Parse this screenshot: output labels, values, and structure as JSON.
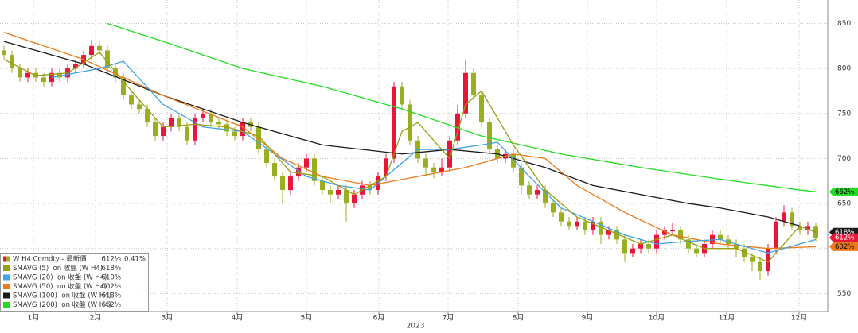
{
  "chart_data": {
    "type": "candlestick",
    "x_label": "2023",
    "xlim": [
      -0.5,
      103.5
    ],
    "xticks": [
      {
        "value": 3.7,
        "label": "1月"
      },
      {
        "value": 11.5,
        "label": "2月"
      },
      {
        "value": 20.5,
        "label": "3月"
      },
      {
        "value": 29.3,
        "label": "4月"
      },
      {
        "value": 38,
        "label": "5月"
      },
      {
        "value": 47.1,
        "label": "6月"
      },
      {
        "value": 55.8,
        "label": "7月"
      },
      {
        "value": 64.6,
        "label": "8月"
      },
      {
        "value": 73.3,
        "label": "9月"
      },
      {
        "value": 82,
        "label": "10月"
      },
      {
        "value": 90.8,
        "label": "11月"
      },
      {
        "value": 99.9,
        "label": "12月"
      }
    ],
    "ylim": [
      530,
      876
    ],
    "yticks": [
      550,
      600,
      650,
      700,
      750,
      800,
      850
    ],
    "grid": true,
    "candles": {
      "name": "W H4 Comdty - 最新價",
      "last": "612⅛",
      "change": "0.41%",
      "up_color": "#e8173a",
      "down_color": "#9aae22",
      "open": [
        820,
        815,
        800,
        790,
        795,
        790,
        785,
        795,
        790,
        800,
        805,
        815,
        825,
        820,
        800,
        790,
        770,
        760,
        755,
        740,
        725,
        735,
        745,
        735,
        720,
        745,
        750,
        740,
        738,
        730,
        725,
        740,
        735,
        710,
        695,
        680,
        665,
        680,
        690,
        700,
        675,
        665,
        660,
        665,
        650,
        660,
        670,
        665,
        680,
        700,
        780,
        760,
        720,
        700,
        690,
        685,
        690,
        720,
        750,
        795,
        770,
        740,
        710,
        700,
        705,
        690,
        670,
        660,
        665,
        650,
        640,
        630,
        625,
        630,
        620,
        630,
        615,
        620,
        610,
        595,
        600,
        605,
        600,
        615,
        620,
        620,
        610,
        600,
        595,
        605,
        615,
        610,
        605,
        600,
        590,
        585,
        575,
        600,
        630,
        640,
        625,
        620,
        625
      ],
      "high": [
        825,
        820,
        805,
        800,
        800,
        795,
        800,
        800,
        805,
        810,
        820,
        832,
        830,
        825,
        805,
        795,
        775,
        765,
        760,
        745,
        740,
        750,
        750,
        740,
        750,
        755,
        755,
        745,
        743,
        735,
        745,
        745,
        740,
        715,
        700,
        685,
        685,
        695,
        705,
        705,
        680,
        670,
        670,
        670,
        665,
        675,
        675,
        685,
        705,
        785,
        785,
        765,
        725,
        705,
        695,
        700,
        725,
        760,
        810,
        800,
        775,
        745,
        715,
        710,
        710,
        695,
        675,
        670,
        670,
        655,
        645,
        635,
        635,
        635,
        635,
        635,
        625,
        625,
        615,
        605,
        610,
        610,
        620,
        625,
        628,
        625,
        615,
        605,
        610,
        620,
        620,
        615,
        610,
        605,
        595,
        590,
        605,
        635,
        648,
        645,
        630,
        630,
        628
      ],
      "low": [
        810,
        795,
        785,
        785,
        785,
        780,
        780,
        785,
        785,
        795,
        800,
        810,
        815,
        795,
        785,
        765,
        755,
        750,
        735,
        720,
        720,
        730,
        730,
        715,
        715,
        740,
        735,
        733,
        725,
        720,
        720,
        730,
        705,
        690,
        675,
        650,
        660,
        675,
        685,
        670,
        660,
        650,
        655,
        630,
        645,
        655,
        660,
        660,
        675,
        695,
        755,
        715,
        695,
        680,
        678,
        680,
        685,
        715,
        745,
        765,
        735,
        705,
        695,
        695,
        685,
        660,
        655,
        655,
        645,
        635,
        625,
        620,
        620,
        615,
        615,
        605,
        610,
        605,
        585,
        590,
        595,
        595,
        595,
        610,
        615,
        605,
        595,
        590,
        590,
        600,
        605,
        600,
        590,
        585,
        575,
        565,
        570,
        595,
        625,
        620,
        615,
        615,
        608
      ],
      "close": [
        815,
        800,
        790,
        795,
        790,
        785,
        795,
        790,
        800,
        805,
        815,
        825,
        820,
        800,
        790,
        770,
        760,
        755,
        740,
        725,
        735,
        745,
        735,
        720,
        745,
        750,
        740,
        738,
        730,
        725,
        740,
        735,
        710,
        695,
        680,
        665,
        680,
        690,
        700,
        675,
        665,
        660,
        665,
        650,
        660,
        670,
        665,
        680,
        700,
        780,
        760,
        720,
        700,
        690,
        685,
        690,
        720,
        750,
        795,
        770,
        740,
        710,
        700,
        705,
        690,
        670,
        660,
        665,
        650,
        640,
        630,
        625,
        630,
        620,
        630,
        615,
        620,
        610,
        595,
        600,
        605,
        600,
        615,
        620,
        620,
        610,
        600,
        595,
        605,
        615,
        610,
        605,
        600,
        590,
        585,
        575,
        600,
        630,
        640,
        625,
        620,
        625,
        612
      ]
    },
    "series": [
      {
        "name": "SMAVG (5)  on 收盤 (W H4)",
        "color": "#9a9e10",
        "last": "618⅜",
        "x": [
          0,
          4,
          8,
          12,
          16,
          20,
          24,
          28,
          32,
          36,
          40,
          44,
          48,
          50,
          52,
          56,
          58,
          60,
          64,
          68,
          72,
          76,
          80,
          84,
          88,
          92,
          96,
          100,
          102
        ],
        "values": [
          810,
          792,
          795,
          818,
          775,
          735,
          738,
          735,
          725,
          685,
          680,
          660,
          680,
          730,
          740,
          700,
          760,
          775,
          715,
          665,
          635,
          620,
          605,
          615,
          600,
          600,
          585,
          625,
          618
        ]
      },
      {
        "name": "SMAVG (20)  on 收盤 (W H4)",
        "color": "#3ea3e8",
        "last": "610⅜",
        "x": [
          6,
          12,
          15,
          20,
          25,
          30,
          34,
          38,
          42,
          46,
          48,
          52,
          56,
          60,
          62,
          66,
          70,
          74,
          78,
          82,
          86,
          90,
          94,
          96,
          100,
          102
        ],
        "values": [
          790,
          800,
          808,
          760,
          735,
          730,
          705,
          680,
          670,
          665,
          680,
          710,
          710,
          715,
          718,
          680,
          645,
          630,
          615,
          605,
          608,
          610,
          600,
          595,
          605,
          610
        ]
      },
      {
        "name": "SMAVG (50)  on 收盤 (W H4)",
        "color": "#f07a1a",
        "last": "602⅛",
        "x": [
          0,
          10,
          20,
          30,
          35,
          40,
          46,
          52,
          58,
          64,
          68,
          72,
          78,
          84,
          90,
          96,
          102
        ],
        "values": [
          840,
          810,
          770,
          735,
          700,
          680,
          670,
          680,
          690,
          705,
          700,
          670,
          640,
          615,
          605,
          600,
          602
        ]
      },
      {
        "name": "SMAVG (100)  on 收盤 (W H4)",
        "color": "#1a1a1a",
        "last": "618⅜",
        "x": [
          0,
          10,
          20,
          30,
          40,
          50,
          56,
          62,
          68,
          74,
          80,
          86,
          90,
          96,
          100,
          102
        ],
        "values": [
          830,
          805,
          770,
          740,
          715,
          705,
          710,
          705,
          690,
          670,
          660,
          650,
          645,
          635,
          625,
          618
        ]
      },
      {
        "name": "SMAVG (200)  on 收盤 (W H4)",
        "color": "#22dd22",
        "last": "662⅛",
        "x": [
          13,
          20,
          30,
          40,
          50,
          60,
          70,
          80,
          90,
          100,
          102
        ],
        "values": [
          850,
          830,
          800,
          780,
          755,
          725,
          705,
          690,
          677,
          665,
          663
        ]
      }
    ]
  }
}
